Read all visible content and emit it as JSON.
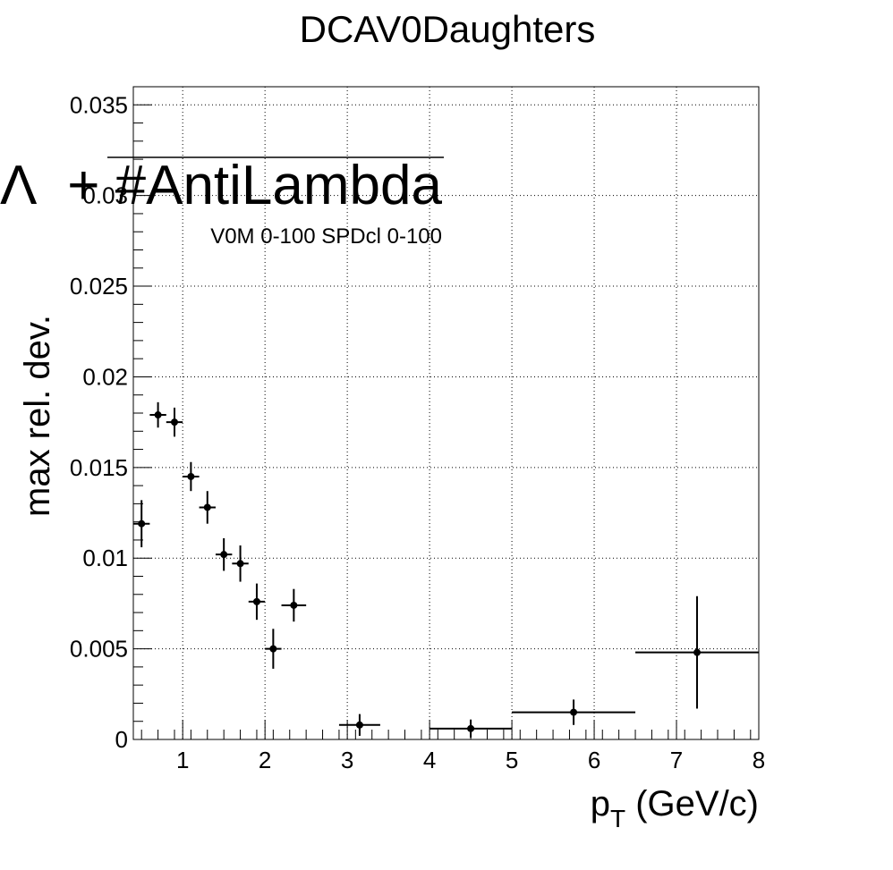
{
  "chart_data": {
    "type": "scatter",
    "title": "DCAV0Daughters",
    "xlabel_main": "p",
    "xlabel_sub": "T",
    "xlabel_unit": " (GeV/c)",
    "ylabel": "max rel. dev.",
    "legend_symbol": "Λ",
    "legend_text": "+ #AntiLambda",
    "annotation": "V0M 0-100 SPDcl 0-100",
    "xlim": [
      0.4,
      8.0
    ],
    "ylim": [
      0,
      0.036
    ],
    "x_ticks": [
      1,
      2,
      3,
      4,
      5,
      6,
      7,
      8
    ],
    "x_tick_labels": [
      "1",
      "2",
      "3",
      "4",
      "5",
      "6",
      "7",
      "8"
    ],
    "y_ticks": [
      0,
      0.005,
      0.01,
      0.015,
      0.02,
      0.025,
      0.03,
      0.035
    ],
    "y_tick_labels": [
      "0",
      "0.005",
      "0.01",
      "0.015",
      "0.02",
      "0.025",
      "0.03",
      "0.035"
    ],
    "grid": true,
    "points": [
      {
        "x": 0.5,
        "xerr": 0.1,
        "y": 0.0119,
        "yerr": 0.0013
      },
      {
        "x": 0.7,
        "xerr": 0.1,
        "y": 0.0179,
        "yerr": 0.0007
      },
      {
        "x": 0.9,
        "xerr": 0.1,
        "y": 0.0175,
        "yerr": 0.0008
      },
      {
        "x": 1.1,
        "xerr": 0.1,
        "y": 0.0145,
        "yerr": 0.0008
      },
      {
        "x": 1.3,
        "xerr": 0.1,
        "y": 0.0128,
        "yerr": 0.0009
      },
      {
        "x": 1.5,
        "xerr": 0.1,
        "y": 0.0102,
        "yerr": 0.0009
      },
      {
        "x": 1.7,
        "xerr": 0.1,
        "y": 0.0097,
        "yerr": 0.001
      },
      {
        "x": 1.9,
        "xerr": 0.1,
        "y": 0.0076,
        "yerr": 0.001
      },
      {
        "x": 2.1,
        "xerr": 0.1,
        "y": 0.005,
        "yerr": 0.0011
      },
      {
        "x": 2.35,
        "xerr": 0.15,
        "y": 0.0074,
        "yerr": 0.0009
      },
      {
        "x": 3.15,
        "xerr": 0.25,
        "y": 0.0008,
        "yerr": 0.0006
      },
      {
        "x": 4.5,
        "xerr": 0.5,
        "y": 0.0006,
        "yerr": 0.0005
      },
      {
        "x": 5.75,
        "xerr": 0.75,
        "y": 0.0015,
        "yerr": 0.0007
      },
      {
        "x": 7.25,
        "xerr": 0.75,
        "y": 0.0048,
        "yerr": 0.0031
      }
    ]
  }
}
